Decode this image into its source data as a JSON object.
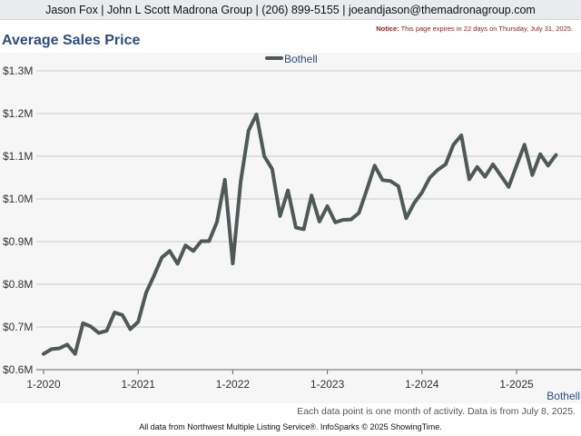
{
  "header": {
    "contact": "Jason Fox | John L Scott Madrona Group | (206) 899-5155 | joeandjason@themadronagroup.com",
    "notice_label": "Notice:",
    "notice_text": "This page expires in 22 days on Thursday, July 31, 2025."
  },
  "footer": {
    "note": "Each data point is one month of activity. Data is from July 8, 2025.",
    "source": "All data from Northwest Multiple Listing Service®. InfoSparks © 2025 ShowingTime."
  },
  "colors": {
    "line": "#4f5a58",
    "title": "#2e4d7b",
    "grid": "#c9c9c9",
    "plot_background": "#f6f6f6",
    "label_blue": "#2e4d7b"
  },
  "chart_data": {
    "type": "line",
    "title": "Average Sales Price",
    "xlabel": "",
    "ylabel": "",
    "ylim": [
      600000,
      1300000
    ],
    "y_ticks": [
      {
        "value": 600000,
        "label": "$0.6M"
      },
      {
        "value": 700000,
        "label": "$0.7M"
      },
      {
        "value": 800000,
        "label": "$0.8M"
      },
      {
        "value": 900000,
        "label": "$0.9M"
      },
      {
        "value": 1000000,
        "label": "$1.0M"
      },
      {
        "value": 1100000,
        "label": "$1.1M"
      },
      {
        "value": 1200000,
        "label": "$1.2M"
      },
      {
        "value": 1300000,
        "label": "$1.3M"
      }
    ],
    "x_ticks": [
      {
        "value": "2020-01",
        "label": "1-2020"
      },
      {
        "value": "2021-01",
        "label": "1-2021"
      },
      {
        "value": "2022-01",
        "label": "1-2022"
      },
      {
        "value": "2023-01",
        "label": "1-2023"
      },
      {
        "value": "2024-01",
        "label": "1-2024"
      },
      {
        "value": "2025-01",
        "label": "1-2025"
      }
    ],
    "x_range": [
      "2020-01",
      "2025-06"
    ],
    "grid": true,
    "legend_position": "top-center",
    "end_label": "Bothell",
    "series": [
      {
        "name": "Bothell",
        "x": [
          "2020-01",
          "2020-02",
          "2020-03",
          "2020-04",
          "2020-05",
          "2020-06",
          "2020-07",
          "2020-08",
          "2020-09",
          "2020-10",
          "2020-11",
          "2020-12",
          "2021-01",
          "2021-02",
          "2021-03",
          "2021-04",
          "2021-05",
          "2021-06",
          "2021-07",
          "2021-08",
          "2021-09",
          "2021-10",
          "2021-11",
          "2021-12",
          "2022-01",
          "2022-02",
          "2022-03",
          "2022-04",
          "2022-05",
          "2022-06",
          "2022-07",
          "2022-08",
          "2022-09",
          "2022-10",
          "2022-11",
          "2022-12",
          "2023-01",
          "2023-02",
          "2023-03",
          "2023-04",
          "2023-05",
          "2023-06",
          "2023-07",
          "2023-08",
          "2023-09",
          "2023-10",
          "2023-11",
          "2023-12",
          "2024-01",
          "2024-02",
          "2024-03",
          "2024-04",
          "2024-05",
          "2024-06",
          "2024-07",
          "2024-08",
          "2024-09",
          "2024-10",
          "2024-11",
          "2024-12",
          "2025-01",
          "2025-02",
          "2025-03",
          "2025-04",
          "2025-05",
          "2025-06"
        ],
        "values": [
          637000,
          648000,
          650000,
          659000,
          637000,
          709000,
          701000,
          686000,
          691000,
          734000,
          728000,
          695000,
          712000,
          780000,
          820000,
          863000,
          878000,
          848000,
          891000,
          878000,
          901000,
          901000,
          946000,
          1045000,
          849000,
          1040000,
          1160000,
          1198000,
          1100000,
          1070000,
          960000,
          1020000,
          933000,
          929000,
          1008000,
          947000,
          983000,
          945000,
          951000,
          952000,
          967000,
          1021000,
          1078000,
          1044000,
          1042000,
          1030000,
          955000,
          990000,
          1015000,
          1050000,
          1068000,
          1081000,
          1127000,
          1149000,
          1046000,
          1075000,
          1052000,
          1081000,
          1055000,
          1028000,
          1078000,
          1127000,
          1056000,
          1105000,
          1078000,
          1103000
        ]
      }
    ]
  }
}
